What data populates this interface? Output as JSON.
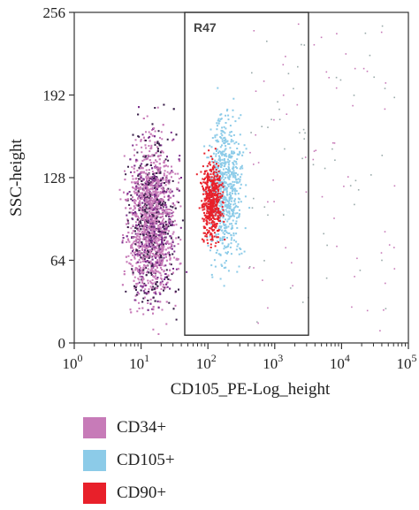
{
  "chart_data": {
    "type": "scatter",
    "x_scale": "log",
    "xlim": [
      1,
      100000
    ],
    "ylim": [
      0,
      256
    ],
    "xlabel": "CD105_PE-Log_height",
    "ylabel": "SSC-height",
    "x_ticks": [
      {
        "value": 1,
        "base": "10",
        "exp": "0"
      },
      {
        "value": 10,
        "base": "10",
        "exp": "1"
      },
      {
        "value": 100,
        "base": "10",
        "exp": "2"
      },
      {
        "value": 1000,
        "base": "10",
        "exp": "3"
      },
      {
        "value": 10000,
        "base": "10",
        "exp": "4"
      },
      {
        "value": 100000,
        "base": "10",
        "exp": "5"
      }
    ],
    "y_ticks": [
      "0",
      "64",
      "128",
      "192",
      "256"
    ],
    "gate": {
      "label": "R47",
      "x_range": [
        45,
        3200
      ],
      "y_range": [
        6,
        256
      ]
    },
    "series": [
      {
        "name": "CD34+",
        "color": "#c77bb8",
        "center_log_x": 1.15,
        "center_y": 95,
        "spread_log_x": 0.35,
        "spread_y": 60
      },
      {
        "name": "CD105+",
        "color": "#8ccbe8",
        "center_log_x": 2.25,
        "center_y": 120,
        "spread_log_x": 0.25,
        "spread_y": 55
      },
      {
        "name": "CD90+",
        "color": "#e8202a",
        "center_log_x": 2.05,
        "center_y": 110,
        "spread_log_x": 0.15,
        "spread_y": 30
      }
    ],
    "legend": [
      {
        "name": "CD34+",
        "color": "#c77bb8"
      },
      {
        "name": "CD105+",
        "color": "#8ccbe8"
      },
      {
        "name": "CD90+",
        "color": "#e8202a"
      }
    ]
  }
}
